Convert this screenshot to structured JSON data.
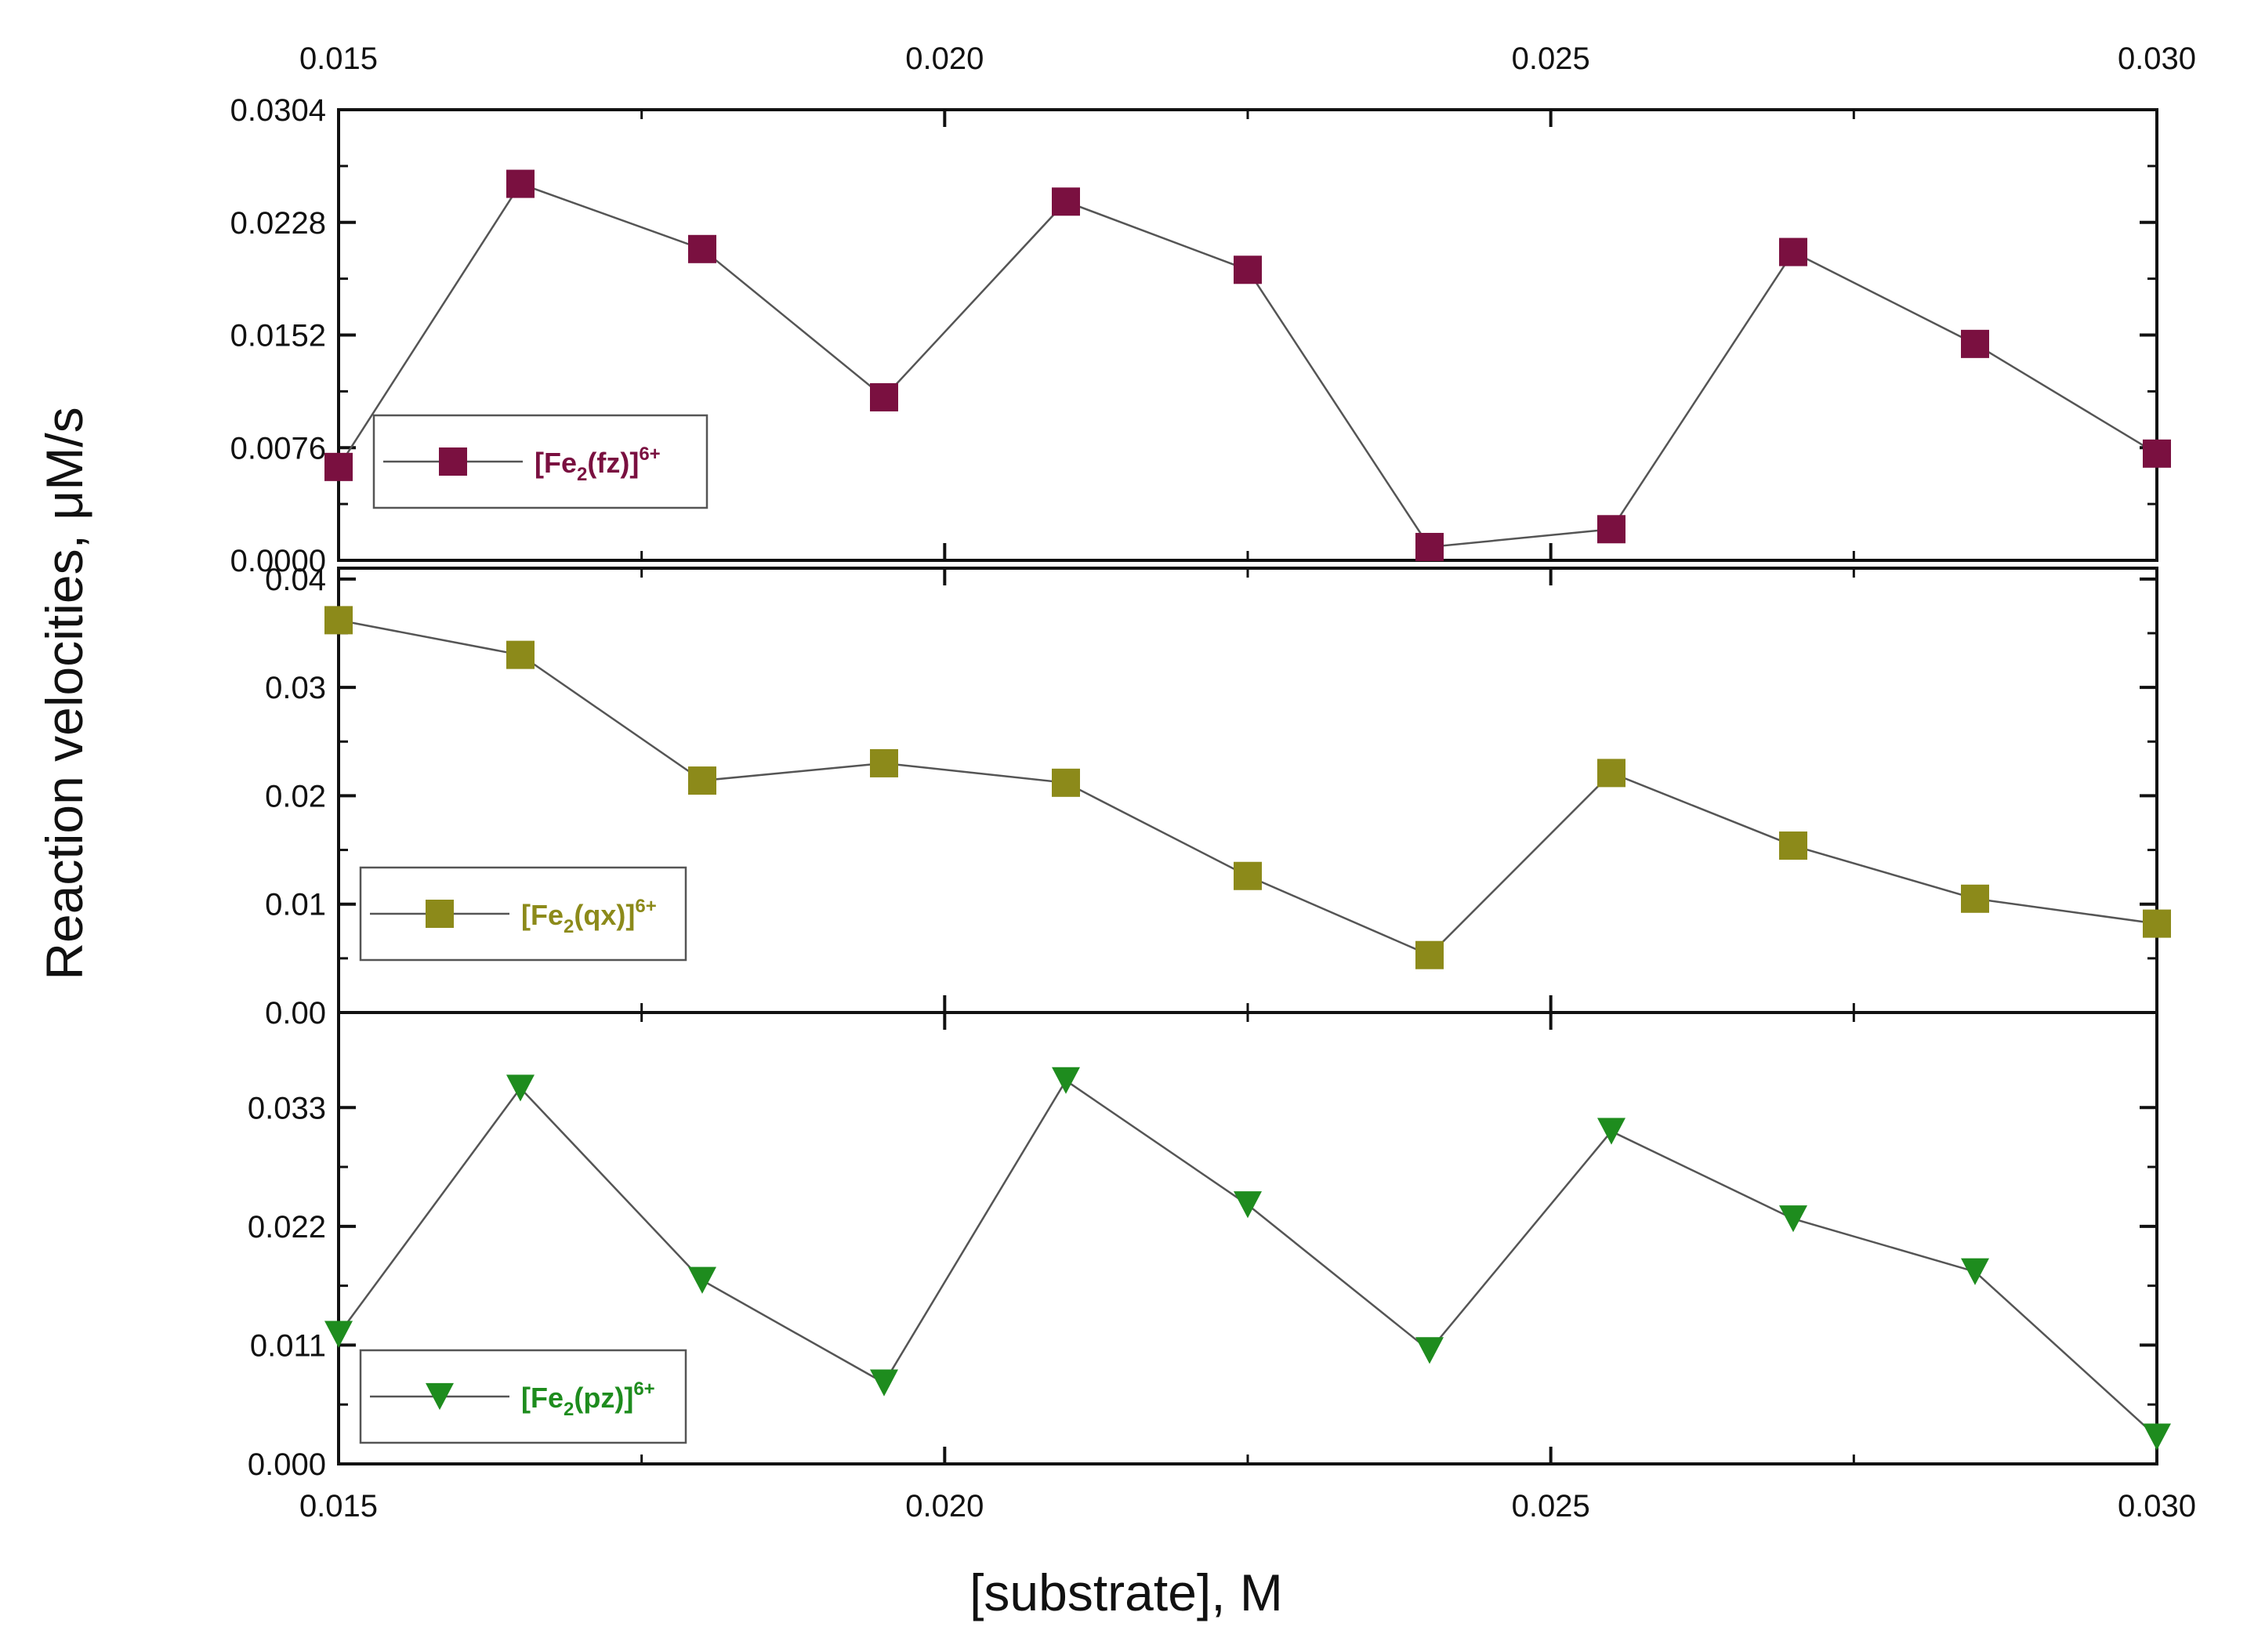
{
  "chart_data": {
    "type": "line",
    "xlabel": "[substrate], M",
    "ylabel": "Reaction velocities, μM/s",
    "xlim": [
      0.015,
      0.03
    ],
    "x_ticks": [
      "0.015",
      "0.020",
      "0.025",
      "0.030"
    ],
    "x": [
      0.015,
      0.0165,
      0.018,
      0.0195,
      0.021,
      0.0225,
      0.024,
      0.0255,
      0.027,
      0.0285,
      0.03
    ],
    "panels": [
      {
        "series": {
          "name_main": "[Fe",
          "name_sub": "2",
          "name_mid": "(fz)]",
          "name_sup": "6+",
          "color": "#7a1040",
          "marker": "square",
          "values": [
            0.0063,
            0.0254,
            0.021,
            0.011,
            0.0242,
            0.0196,
            0.0009,
            0.0021,
            0.0208,
            0.0146,
            0.0072
          ]
        },
        "ylim": [
          0,
          0.0304
        ],
        "y_ticks": [
          "0.0304",
          "0.0228",
          "0.0152",
          "0.0076",
          "0.0000"
        ],
        "legend": "left"
      },
      {
        "series": {
          "name_main": "[Fe",
          "name_sub": "2",
          "name_mid": "(qx)]",
          "name_sup": "6+",
          "color": "#8c8a1a",
          "marker": "square",
          "values": [
            0.0362,
            0.033,
            0.0214,
            0.023,
            0.0212,
            0.0126,
            0.0053,
            0.0221,
            0.0154,
            0.0105,
            0.0082
          ]
        },
        "ylim": [
          0,
          0.041
        ],
        "y_ticks": [
          "0.04",
          "0.03",
          "0.02",
          "0.01",
          "0.00"
        ],
        "legend": "left"
      },
      {
        "series": {
          "name_main": "[Fe",
          "name_sub": "2",
          "name_mid": "(pz)]",
          "name_sup": "6+",
          "color": "#1e8c1e",
          "marker": "triangle-down",
          "values": [
            0.012,
            0.0348,
            0.017,
            0.0075,
            0.0355,
            0.024,
            0.0105,
            0.0308,
            0.0227,
            0.0178,
            0.0025
          ]
        },
        "ylim": [
          0,
          0.0418
        ],
        "y_ticks": [
          "0.033",
          "0.022",
          "0.011",
          "0.000"
        ],
        "legend": "left"
      }
    ]
  }
}
